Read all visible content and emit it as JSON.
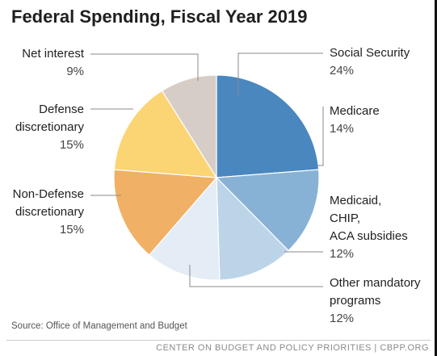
{
  "title": "Federal Spending, Fiscal Year 2019",
  "source": "Source: Office of Management and Budget",
  "footer": "CENTER ON BUDGET AND POLICY PRIORITIES | CBPP.ORG",
  "chart_data": {
    "type": "pie",
    "title": "Federal Spending, Fiscal Year 2019",
    "slices": [
      {
        "label": [
          "Social Security"
        ],
        "pct_label": "24%",
        "value": 24,
        "color": "#4a87be"
      },
      {
        "label": [
          "Medicare"
        ],
        "pct_label": "14%",
        "value": 14,
        "color": "#87b2d6"
      },
      {
        "label": [
          "Medicaid,",
          "CHIP,",
          "ACA subsidies"
        ],
        "pct_label": "12%",
        "value": 12,
        "color": "#bcd4e8"
      },
      {
        "label": [
          "Other mandatory",
          "programs"
        ],
        "pct_label": "12%",
        "value": 12,
        "color": "#e4ecf5"
      },
      {
        "label": [
          "Non-Defense",
          "discretionary"
        ],
        "pct_label": "15%",
        "value": 15,
        "color": "#f0b065"
      },
      {
        "label": [
          "Defense",
          "discretionary"
        ],
        "pct_label": "15%",
        "value": 15,
        "color": "#fbd474"
      },
      {
        "label": [
          "Net interest"
        ],
        "pct_label": "9%",
        "value": 9,
        "color": "#d6cec6"
      }
    ]
  }
}
